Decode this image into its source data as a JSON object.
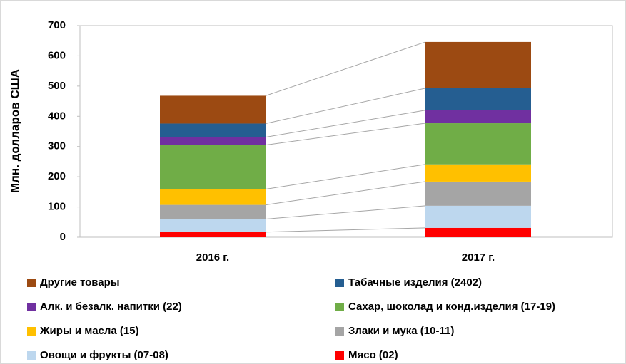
{
  "chart_data": {
    "type": "stacked_bar",
    "y_label": "Млн. долларов США",
    "categories": [
      "2016 г.",
      "2017 г."
    ],
    "series": [
      {
        "name": "Другие товары",
        "color": "#9c4a12",
        "values": [
          92,
          153
        ]
      },
      {
        "name": "Табачные изделия (2402)",
        "color": "#255e91",
        "values": [
          45,
          73
        ]
      },
      {
        "name": "Алк. и безалк. напитки (22)",
        "color": "#7030a0",
        "values": [
          26,
          43
        ]
      },
      {
        "name": "Сахар, шоколад и конд.изделия (17-19)",
        "color": "#70ad47",
        "values": [
          146,
          136
        ]
      },
      {
        "name": "Жиры и масла (15)",
        "color": "#ffc000",
        "values": [
          52,
          57
        ]
      },
      {
        "name": "Злаки и мука (10-11)",
        "color": "#a5a5a5",
        "values": [
          47,
          80
        ]
      },
      {
        "name": "Овощи и фрукты (07-08)",
        "color": "#bdd7ee",
        "values": [
          43,
          73
        ]
      },
      {
        "name": "Мясо (02)",
        "color": "#ff0000",
        "values": [
          17,
          31
        ]
      }
    ],
    "ylim": [
      0,
      700
    ],
    "yticks": [
      0,
      100,
      200,
      300,
      400,
      500,
      600,
      700
    ],
    "grid": false
  }
}
